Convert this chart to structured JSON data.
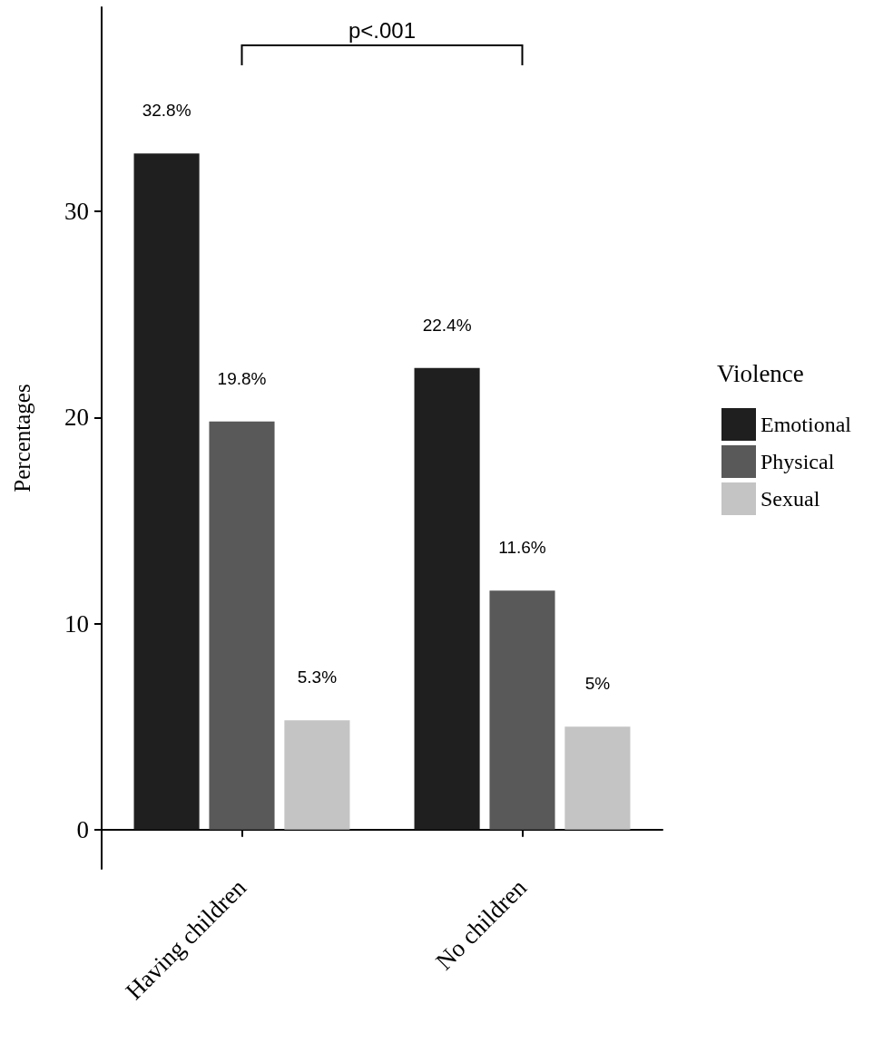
{
  "chart_data": {
    "type": "bar",
    "ylabel": "Percentages",
    "legend_title": "Violence",
    "categories": [
      "Having children",
      "No children"
    ],
    "series": [
      {
        "name": "Emotional",
        "color": "#1f1f1f",
        "values": [
          32.8,
          22.4
        ],
        "value_labels": [
          "32.8%",
          "22.4%"
        ]
      },
      {
        "name": "Physical",
        "color": "#595959",
        "values": [
          19.8,
          11.6
        ],
        "value_labels": [
          "19.8%",
          "11.6%"
        ]
      },
      {
        "name": "Sexual",
        "color": "#c4c4c4",
        "values": [
          5.3,
          5
        ],
        "value_labels": [
          "5.3%",
          "5%"
        ]
      }
    ],
    "ylim": [
      -1.9,
      39.9
    ],
    "yticks": [
      0,
      10,
      20,
      30
    ],
    "grid": false,
    "legend": "right",
    "annotations": [
      "p<.001"
    ]
  }
}
